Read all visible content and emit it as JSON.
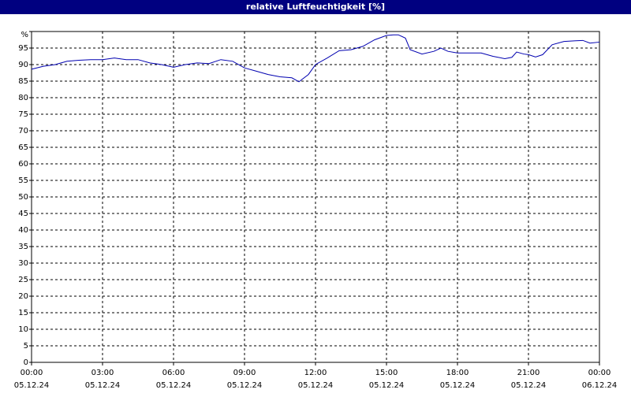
{
  "chart_data": {
    "type": "line",
    "title": "relative Luftfeuchtigkeit [%]",
    "xlim": [
      0,
      24
    ],
    "xticks": [
      {
        "value": 0,
        "label": "00:00"
      },
      {
        "value": 3,
        "label": "03:00"
      },
      {
        "value": 6,
        "label": "06:00"
      },
      {
        "value": 9,
        "label": "09:00"
      },
      {
        "value": 12,
        "label": "12:00"
      },
      {
        "value": 15,
        "label": "15:00"
      },
      {
        "value": 18,
        "label": "18:00"
      },
      {
        "value": 21,
        "label": "21:00"
      },
      {
        "value": 24,
        "label": "00:00"
      }
    ],
    "xtick_dates": [
      "05.12.24",
      "05.12.24",
      "05.12.24",
      "05.12.24",
      "05.12.24",
      "05.12.24",
      "05.12.24",
      "05.12.24",
      "06.12.24"
    ],
    "ylim": [
      0,
      100
    ],
    "yticks": [
      0,
      5,
      10,
      15,
      20,
      25,
      30,
      35,
      40,
      45,
      50,
      55,
      60,
      65,
      70,
      75,
      80,
      85,
      90,
      95,
      {
        "value": 100,
        "label": "%"
      }
    ],
    "grid": true,
    "series": [
      {
        "color": "#0000b0",
        "x": [
          0,
          0.5,
          1,
          1.5,
          2,
          2.5,
          3,
          3.5,
          4,
          4.5,
          5,
          5.5,
          6,
          6.5,
          7,
          7.5,
          8,
          8.5,
          9,
          9.5,
          10,
          10.5,
          11,
          11.3,
          11.7,
          12,
          12.5,
          13,
          13.5,
          14,
          14.5,
          15,
          15.3,
          15.5,
          15.8,
          16,
          16.5,
          17,
          17.3,
          17.6,
          18,
          18.5,
          19,
          19.5,
          20,
          20.3,
          20.5,
          20.8,
          21,
          21.3,
          21.6,
          22,
          22.5,
          23,
          23.3,
          23.6,
          24
        ],
        "values": [
          88.6,
          89.5,
          90,
          91,
          91.3,
          91.5,
          91.5,
          92,
          91.5,
          91.5,
          90.5,
          90,
          89.2,
          90,
          90.5,
          90.3,
          91.5,
          91,
          89,
          88,
          87,
          86.3,
          86,
          84.8,
          87,
          90,
          92,
          94.2,
          94.5,
          95.5,
          97.5,
          98.8,
          99,
          99,
          98,
          94.5,
          93.2,
          94,
          95,
          94,
          93.5,
          93.5,
          93.5,
          92.5,
          91.8,
          92.2,
          93.8,
          93.2,
          93,
          92.3,
          93,
          96,
          97,
          97.2,
          97.3,
          96.5,
          96.8
        ]
      }
    ]
  }
}
